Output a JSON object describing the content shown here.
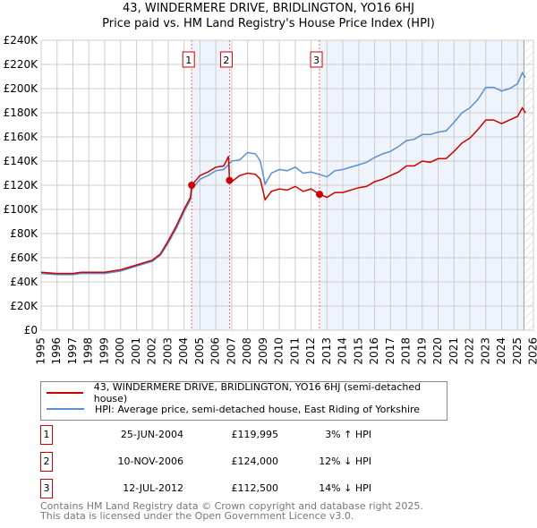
{
  "title_line1": "43, WINDERMERE DRIVE, BRIDLINGTON, YO16 6HJ",
  "title_line2": "Price paid vs. HM Land Registry's House Price Index (HPI)",
  "chart_data": {
    "type": "line",
    "title": "43, WINDERMERE DRIVE, BRIDLINGTON, YO16 6HJ — Price paid vs. HM Land Registry's House Price Index (HPI)",
    "xlim": [
      1995,
      2026
    ],
    "ylim": [
      0,
      240000
    ],
    "yticks": [
      0,
      20000,
      40000,
      60000,
      80000,
      100000,
      120000,
      140000,
      160000,
      180000,
      200000,
      220000,
      240000
    ],
    "ytick_labels": [
      "£0",
      "£20K",
      "£40K",
      "£60K",
      "£80K",
      "£100K",
      "£120K",
      "£140K",
      "£160K",
      "£180K",
      "£200K",
      "£220K",
      "£240K"
    ],
    "xticks": [
      "1995",
      "1996",
      "1997",
      "1998",
      "1999",
      "2000",
      "2001",
      "2002",
      "2003",
      "2004",
      "2005",
      "2006",
      "2007",
      "2008",
      "2009",
      "2010",
      "2011",
      "2012",
      "2013",
      "2014",
      "2015",
      "2016",
      "2017",
      "2018",
      "2019",
      "2020",
      "2021",
      "2022",
      "2023",
      "2024",
      "2025",
      "2026"
    ],
    "grid": true,
    "legend_position": "below",
    "colors": {
      "price": "#cc0000",
      "hpi": "#5b8fd0",
      "shade": "#eef3fc",
      "marker_line": "#ff6666"
    },
    "series": [
      {
        "name": "43, WINDERMERE DRIVE, BRIDLINGTON, YO16 6HJ (semi-detached house)",
        "color": "#cc0000",
        "x": [
          1995,
          1996,
          1997,
          1997.5,
          1998,
          1999,
          2000,
          2001,
          2002,
          2002.5,
          2003,
          2003.5,
          2004,
          2004.4,
          2004.48,
          2005,
          2005.5,
          2006,
          2006.5,
          2006.8,
          2006.86,
          2007,
          2007.5,
          2008,
          2008.5,
          2008.8,
          2009.1,
          2009.5,
          2010,
          2010.5,
          2011,
          2011.5,
          2012,
          2012.53,
          2013,
          2013.5,
          2014,
          2015,
          2015.5,
          2016,
          2016.5,
          2017,
          2017.5,
          2018,
          2018.5,
          2019,
          2019.5,
          2020,
          2020.5,
          2021,
          2021.5,
          2022,
          2022.5,
          2023,
          2023.5,
          2024,
          2024.5,
          2025,
          2025.3,
          2025.5
        ],
        "y": [
          48,
          47,
          47,
          48,
          48,
          48,
          50,
          54,
          58,
          63,
          74,
          86,
          100,
          110,
          120,
          128,
          131,
          135,
          136,
          144,
          124,
          123,
          128,
          130,
          129,
          125,
          108,
          115,
          117,
          116,
          119,
          115,
          117,
          112.5,
          110,
          114,
          114,
          118,
          119,
          123,
          125,
          128,
          131,
          136,
          136,
          140,
          139,
          142,
          142,
          148,
          155,
          159,
          166,
          174,
          174,
          171,
          174,
          177,
          184,
          180
        ]
      },
      {
        "name": "HPI: Average price, semi-detached house, East Riding of Yorkshire",
        "color": "#5b8fd0",
        "x": [
          1995,
          1996,
          1997,
          1997.5,
          1998,
          1999,
          2000,
          2001,
          2002,
          2002.5,
          2003,
          2003.5,
          2004,
          2004.4,
          2004.5,
          2005,
          2005.5,
          2006,
          2006.5,
          2007,
          2007.5,
          2008,
          2008.5,
          2008.8,
          2009.1,
          2009.5,
          2010,
          2010.5,
          2011,
          2011.5,
          2012,
          2012.5,
          2013,
          2013.5,
          2014,
          2015,
          2015.5,
          2016,
          2016.5,
          2017,
          2017.5,
          2018,
          2018.5,
          2019,
          2019.5,
          2020,
          2020.5,
          2021,
          2021.5,
          2022,
          2022.5,
          2023,
          2023.5,
          2024,
          2024.5,
          2025,
          2025.3,
          2025.5
        ],
        "y": [
          47,
          46,
          46,
          47,
          47,
          47,
          49,
          53,
          57,
          62,
          72,
          84,
          98,
          108,
          117,
          125,
          128,
          132,
          133,
          140,
          141,
          147,
          146,
          140,
          121,
          130,
          133,
          132,
          135,
          130,
          131,
          129,
          127,
          132,
          133,
          137,
          139,
          143,
          146,
          148,
          152,
          157,
          158,
          162,
          162,
          164,
          165,
          172,
          180,
          184,
          191,
          201,
          201,
          198,
          200,
          204,
          213,
          209
        ]
      }
    ],
    "value_unit": "£K",
    "sales": [
      {
        "num": "1",
        "x": 2004.48,
        "date": "25-JUN-2004",
        "price": "£119,995",
        "value": 119995,
        "delta": "3% ↑ HPI"
      },
      {
        "num": "2",
        "x": 2006.86,
        "date": "10-NOV-2006",
        "price": "£124,000",
        "value": 124000,
        "delta": "12% ↓ HPI"
      },
      {
        "num": "3",
        "x": 2012.53,
        "date": "12-JUL-2012",
        "price": "£112,500",
        "value": 112500,
        "delta": "14% ↓ HPI"
      }
    ],
    "forecast_start": 2025.4
  },
  "legend": {
    "price_label": "43, WINDERMERE DRIVE, BRIDLINGTON, YO16 6HJ (semi-detached house)",
    "hpi_label": "HPI: Average price, semi-detached house, East Riding of Yorkshire"
  },
  "footer": {
    "line1": "Contains HM Land Registry data © Crown copyright and database right 2025.",
    "line2": "This data is licensed under the Open Government Licence v3.0."
  }
}
